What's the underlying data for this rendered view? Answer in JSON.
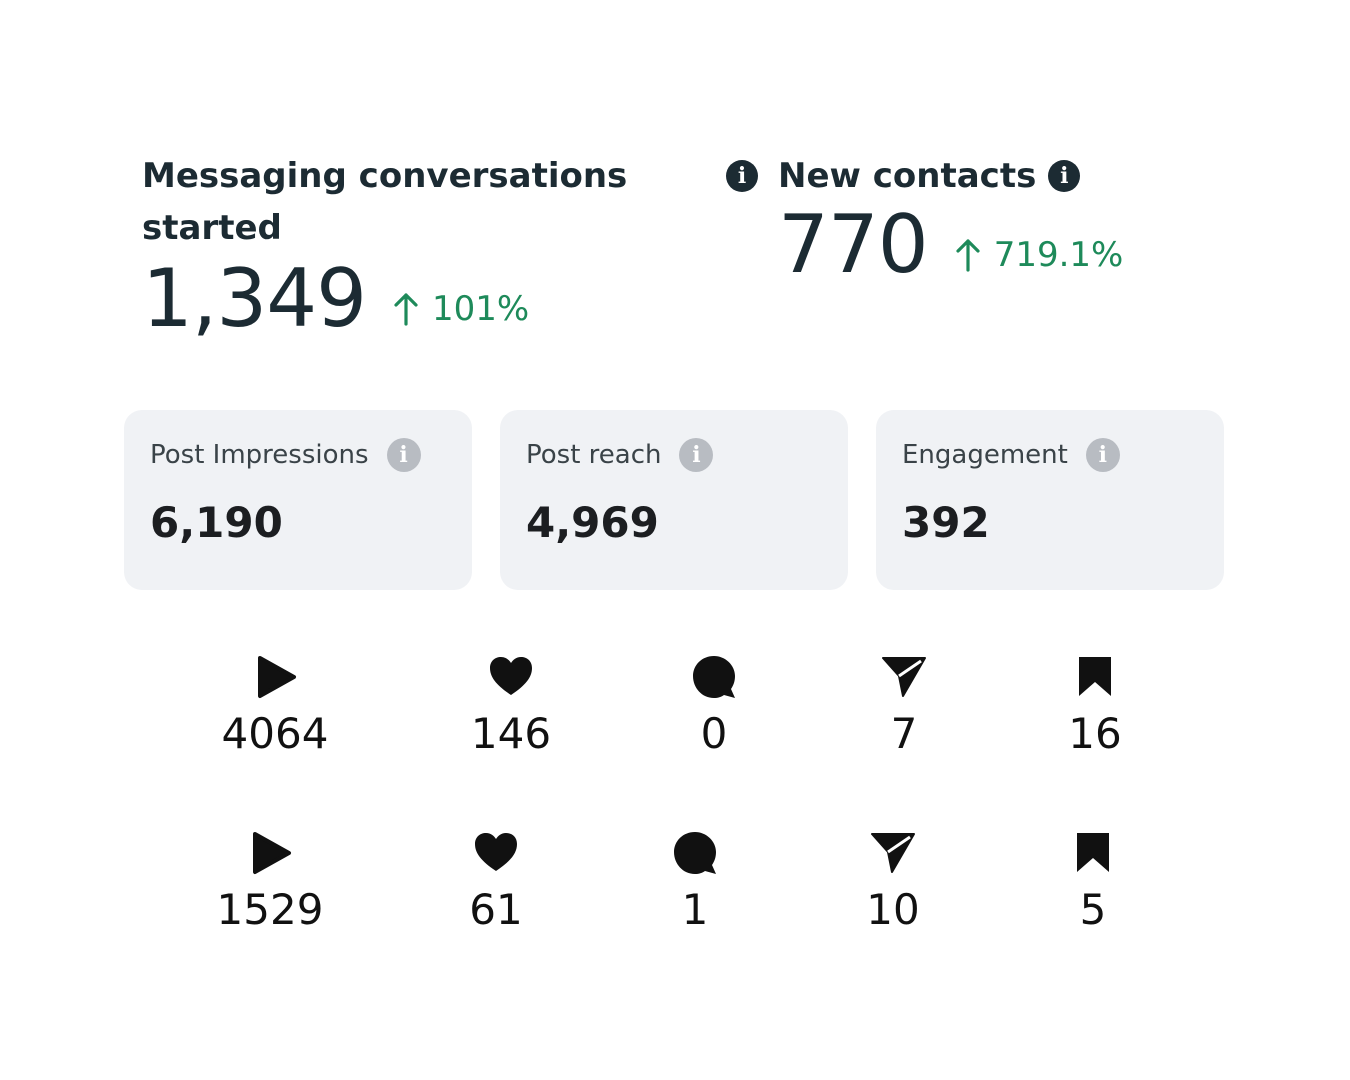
{
  "metrics": {
    "messaging": {
      "title_line1": "Messaging conversations",
      "title_line2": "started",
      "value": "1,349",
      "change": "101%"
    },
    "new_contacts": {
      "title": "New contacts",
      "value": "770",
      "change": "719.1%"
    },
    "change_color": "#1e8a5a"
  },
  "cards": {
    "impressions": {
      "label": "Post Impressions",
      "value": "6,190"
    },
    "reach": {
      "label": "Post reach",
      "value": "4,969"
    },
    "engagement": {
      "label": "Engagement",
      "value": "392"
    }
  },
  "post_stats": [
    {
      "plays": "4064",
      "likes": "146",
      "comments": "0",
      "shares": "7",
      "saves": "16"
    },
    {
      "plays": "1529",
      "likes": "61",
      "comments": "1",
      "shares": "10",
      "saves": "5"
    }
  ],
  "icons": [
    "play-icon",
    "heart-icon",
    "comment-icon",
    "share-icon",
    "bookmark-icon",
    "info-icon",
    "arrow-up-icon"
  ]
}
